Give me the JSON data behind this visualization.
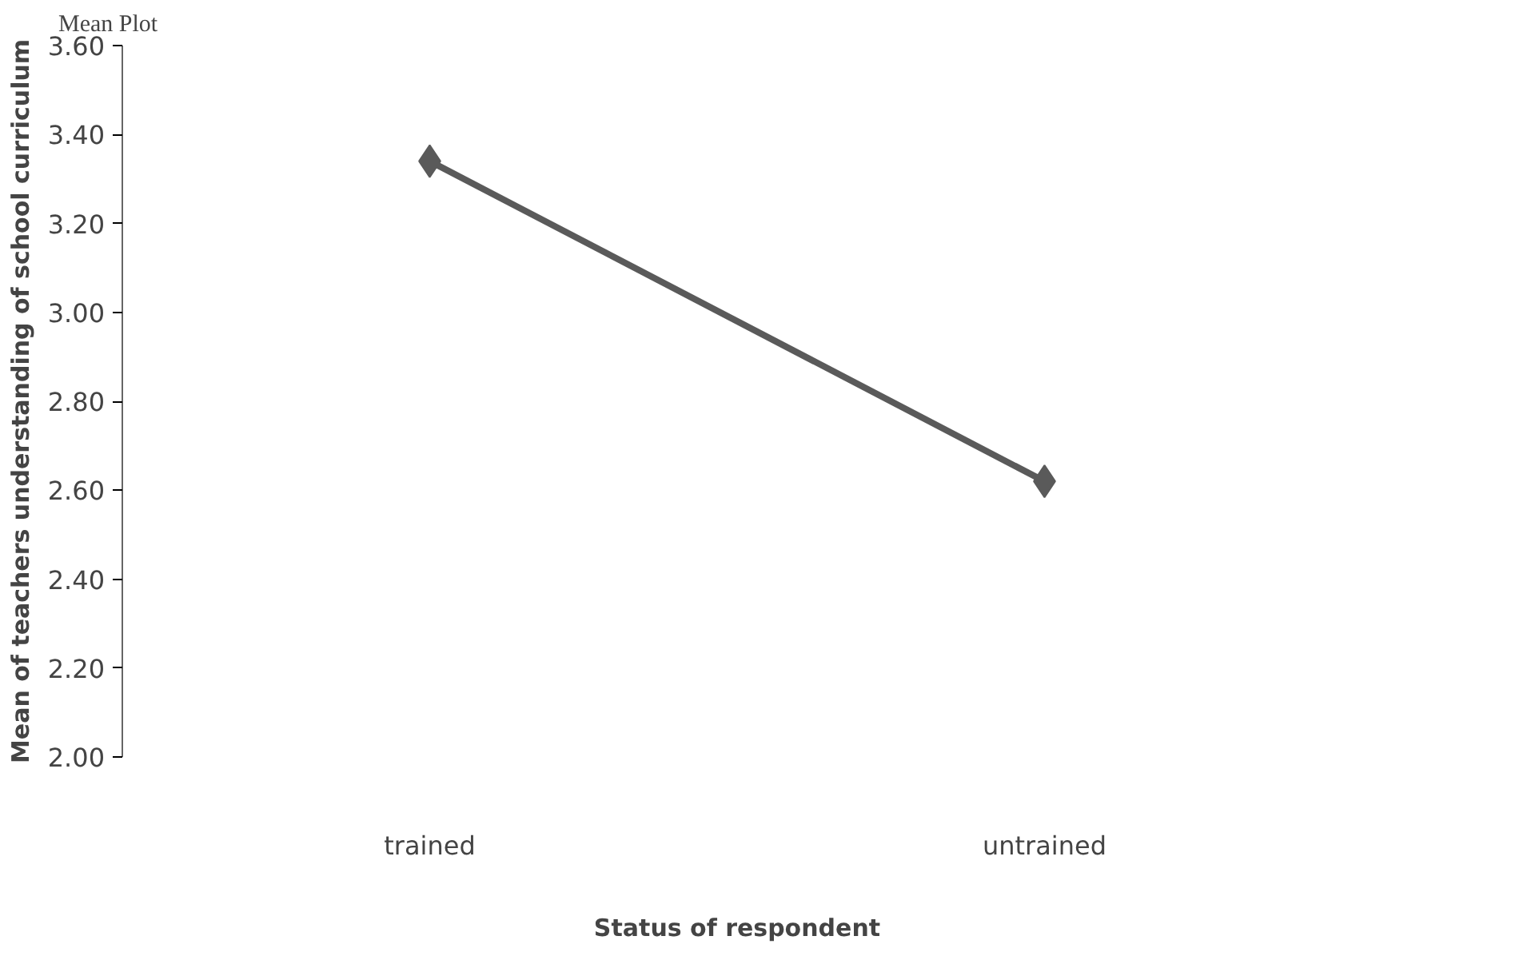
{
  "chart_data": {
    "type": "line",
    "title": "Mean Plot",
    "xlabel": "Status of respondent",
    "ylabel": "Mean of teachers understanding of school curriculum",
    "categories": [
      "trained",
      "untrained"
    ],
    "series": [
      {
        "color": "#5a5a5a",
        "values": [
          3.34,
          2.62
        ]
      }
    ],
    "ylim": [
      2.0,
      3.6
    ],
    "yticks": [
      {
        "value": 2.0,
        "label": "2.00"
      },
      {
        "value": 2.2,
        "label": "2.20"
      },
      {
        "value": 2.4,
        "label": "2.40"
      },
      {
        "value": 2.6,
        "label": "2.60"
      },
      {
        "value": 2.8,
        "label": "2.80"
      },
      {
        "value": 3.0,
        "label": "3.00"
      },
      {
        "value": 3.2,
        "label": "3.20"
      },
      {
        "value": 3.4,
        "label": "3.40"
      },
      {
        "value": 3.6,
        "label": "3.60"
      }
    ],
    "marker": "diamond",
    "grid": false
  }
}
